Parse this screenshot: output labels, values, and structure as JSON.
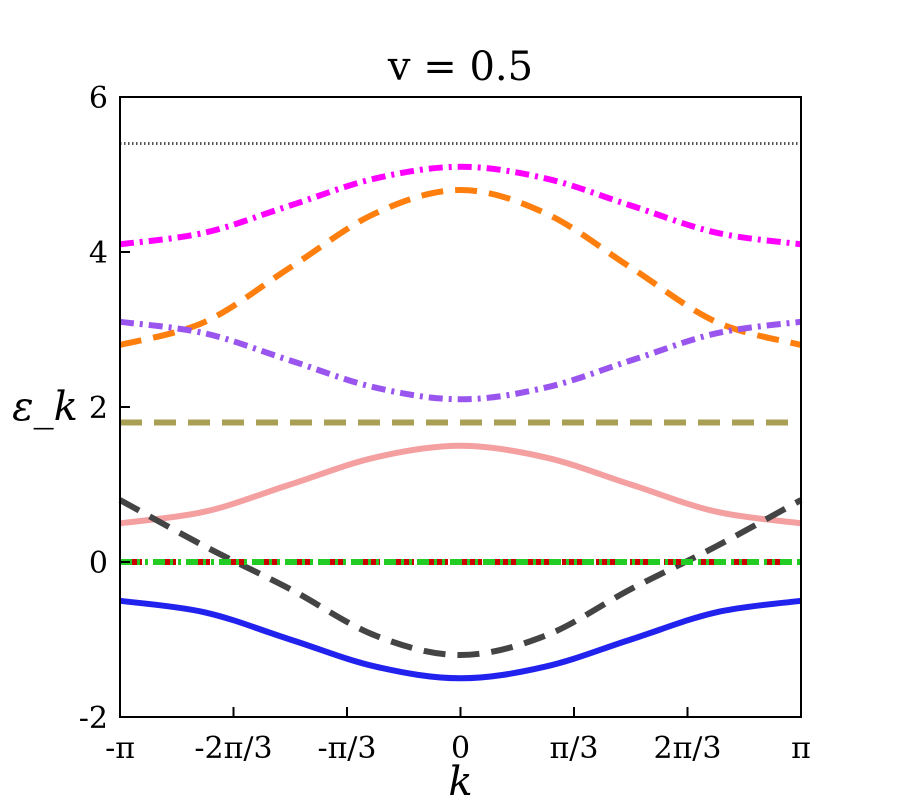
{
  "chart_data": {
    "type": "line",
    "title": "v = 0.5",
    "xlabel": "k",
    "ylabel": "ε_k",
    "xlim": [
      -3.14159,
      3.14159
    ],
    "ylim": [
      -2,
      6
    ],
    "xticks": [
      {
        "value": -3.14159,
        "label": "-π"
      },
      {
        "value": -2.0944,
        "label": "-2π/3"
      },
      {
        "value": -1.0472,
        "label": "-π/3"
      },
      {
        "value": 0,
        "label": "0"
      },
      {
        "value": 1.0472,
        "label": "π/3"
      },
      {
        "value": 2.0944,
        "label": "2π/3"
      },
      {
        "value": 3.14159,
        "label": "π"
      }
    ],
    "yticks": [
      {
        "value": -2,
        "label": "-2"
      },
      {
        "value": 0,
        "label": "0"
      },
      {
        "value": 2,
        "label": "2"
      },
      {
        "value": 4,
        "label": "4"
      },
      {
        "value": 6,
        "label": "6"
      }
    ],
    "grid": false,
    "legend": "none",
    "series": [
      {
        "style": "dotted",
        "color": "#555555",
        "x": [
          -3.14159,
          3.14159
        ],
        "y": [
          5.4,
          5.4
        ]
      },
      {
        "style": "dashdot",
        "color": "#ff00ff",
        "x": [
          -3.14159,
          -2.356,
          -1.571,
          -0.785,
          0,
          0.785,
          1.571,
          2.356,
          3.14159
        ],
        "y": [
          4.1,
          4.25,
          4.6,
          4.95,
          5.1,
          4.95,
          4.6,
          4.25,
          4.1
        ]
      },
      {
        "style": "dashed",
        "color": "#ff7f0e",
        "x": [
          -3.14159,
          -2.356,
          -1.571,
          -0.785,
          0,
          0.785,
          1.571,
          2.356,
          3.14159
        ],
        "y": [
          2.8,
          3.1,
          3.8,
          4.5,
          4.8,
          4.5,
          3.8,
          3.1,
          2.8
        ]
      },
      {
        "style": "dashdot",
        "color": "#9955ee",
        "x": [
          -3.14159,
          -2.356,
          -1.571,
          -0.785,
          0,
          0.785,
          1.571,
          2.356,
          3.14159
        ],
        "y": [
          3.1,
          2.95,
          2.6,
          2.25,
          2.1,
          2.25,
          2.6,
          2.95,
          3.1
        ]
      },
      {
        "style": "dashed",
        "color": "#aaa055",
        "x": [
          -3.14159,
          3.14159
        ],
        "y": [
          1.8,
          1.8
        ]
      },
      {
        "style": "solid",
        "color": "#f4a0a0",
        "x": [
          -3.14159,
          -2.356,
          -1.571,
          -0.785,
          0,
          0.785,
          1.571,
          2.356,
          3.14159
        ],
        "y": [
          0.5,
          0.65,
          1.0,
          1.35,
          1.5,
          1.35,
          1.0,
          0.65,
          0.5
        ]
      },
      {
        "style": "dashed",
        "color": "#444444",
        "x": [
          -3.14159,
          -2.356,
          -1.571,
          -0.785,
          0,
          0.785,
          1.571,
          2.356,
          3.14159
        ],
        "y": [
          0.8,
          0.2,
          -0.35,
          -0.95,
          -1.2,
          -0.95,
          -0.35,
          0.2,
          0.8
        ]
      },
      {
        "style": "dashed",
        "color": "#cc0000",
        "x": [
          -3.14159,
          3.14159
        ],
        "y": [
          0,
          0
        ]
      },
      {
        "style": "dashdotdot",
        "color": "#22cc22",
        "x": [
          -3.14159,
          3.14159
        ],
        "y": [
          0,
          0
        ]
      },
      {
        "style": "solid",
        "color": "#2222ee",
        "x": [
          -3.14159,
          -2.356,
          -1.571,
          -0.785,
          0,
          0.785,
          1.571,
          2.356,
          3.14159
        ],
        "y": [
          -0.5,
          -0.65,
          -1.0,
          -1.35,
          -1.5,
          -1.35,
          -1.0,
          -0.65,
          -0.5
        ]
      }
    ]
  }
}
